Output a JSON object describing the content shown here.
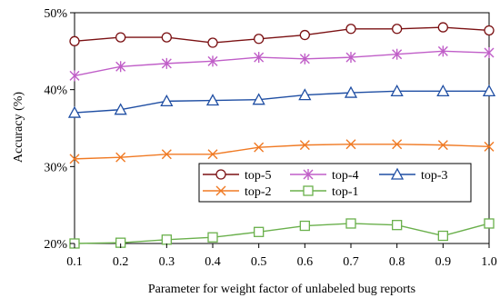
{
  "chart_data": {
    "type": "line",
    "title": "",
    "xlabel": "Parameter for weight factor of unlabeled bug reports",
    "ylabel": "Accuracy (%)",
    "x": [
      0.1,
      0.2,
      0.3,
      0.4,
      0.5,
      0.6,
      0.7,
      0.8,
      0.9,
      1.0
    ],
    "x_tick_labels": [
      "0.1",
      "0.2",
      "0.3",
      "0.4",
      "0.5",
      "0.6",
      "0.7",
      "0.8",
      "0.9",
      "1.0"
    ],
    "xlim": [
      0.1,
      1.0
    ],
    "ylim": [
      20,
      50
    ],
    "y_ticks": [
      20,
      30,
      40,
      50
    ],
    "y_tick_labels": [
      "20%",
      "30%",
      "40%",
      "50%"
    ],
    "grid": false,
    "legend_position": "center-right",
    "series": [
      {
        "name": "top-5",
        "color": "#7b1113",
        "marker": "circle",
        "values": [
          46.3,
          46.8,
          46.8,
          46.1,
          46.6,
          47.1,
          47.9,
          47.9,
          48.1,
          47.7
        ]
      },
      {
        "name": "top-4",
        "color": "#c05ec8",
        "marker": "asterisk",
        "values": [
          41.8,
          43.0,
          43.4,
          43.7,
          44.2,
          44.0,
          44.2,
          44.6,
          45.0,
          44.8
        ]
      },
      {
        "name": "top-3",
        "color": "#1f4ea3",
        "marker": "triangle",
        "values": [
          37.0,
          37.4,
          38.5,
          38.6,
          38.7,
          39.3,
          39.6,
          39.8,
          39.8,
          39.8
        ]
      },
      {
        "name": "top-2",
        "color": "#f07a24",
        "marker": "x",
        "values": [
          31.0,
          31.2,
          31.6,
          31.6,
          32.5,
          32.8,
          32.9,
          32.9,
          32.8,
          32.6
        ]
      },
      {
        "name": "top-1",
        "color": "#6ab04c",
        "marker": "square",
        "values": [
          20.0,
          20.1,
          20.5,
          20.8,
          21.5,
          22.3,
          22.6,
          22.4,
          21.0,
          22.6
        ]
      }
    ]
  }
}
